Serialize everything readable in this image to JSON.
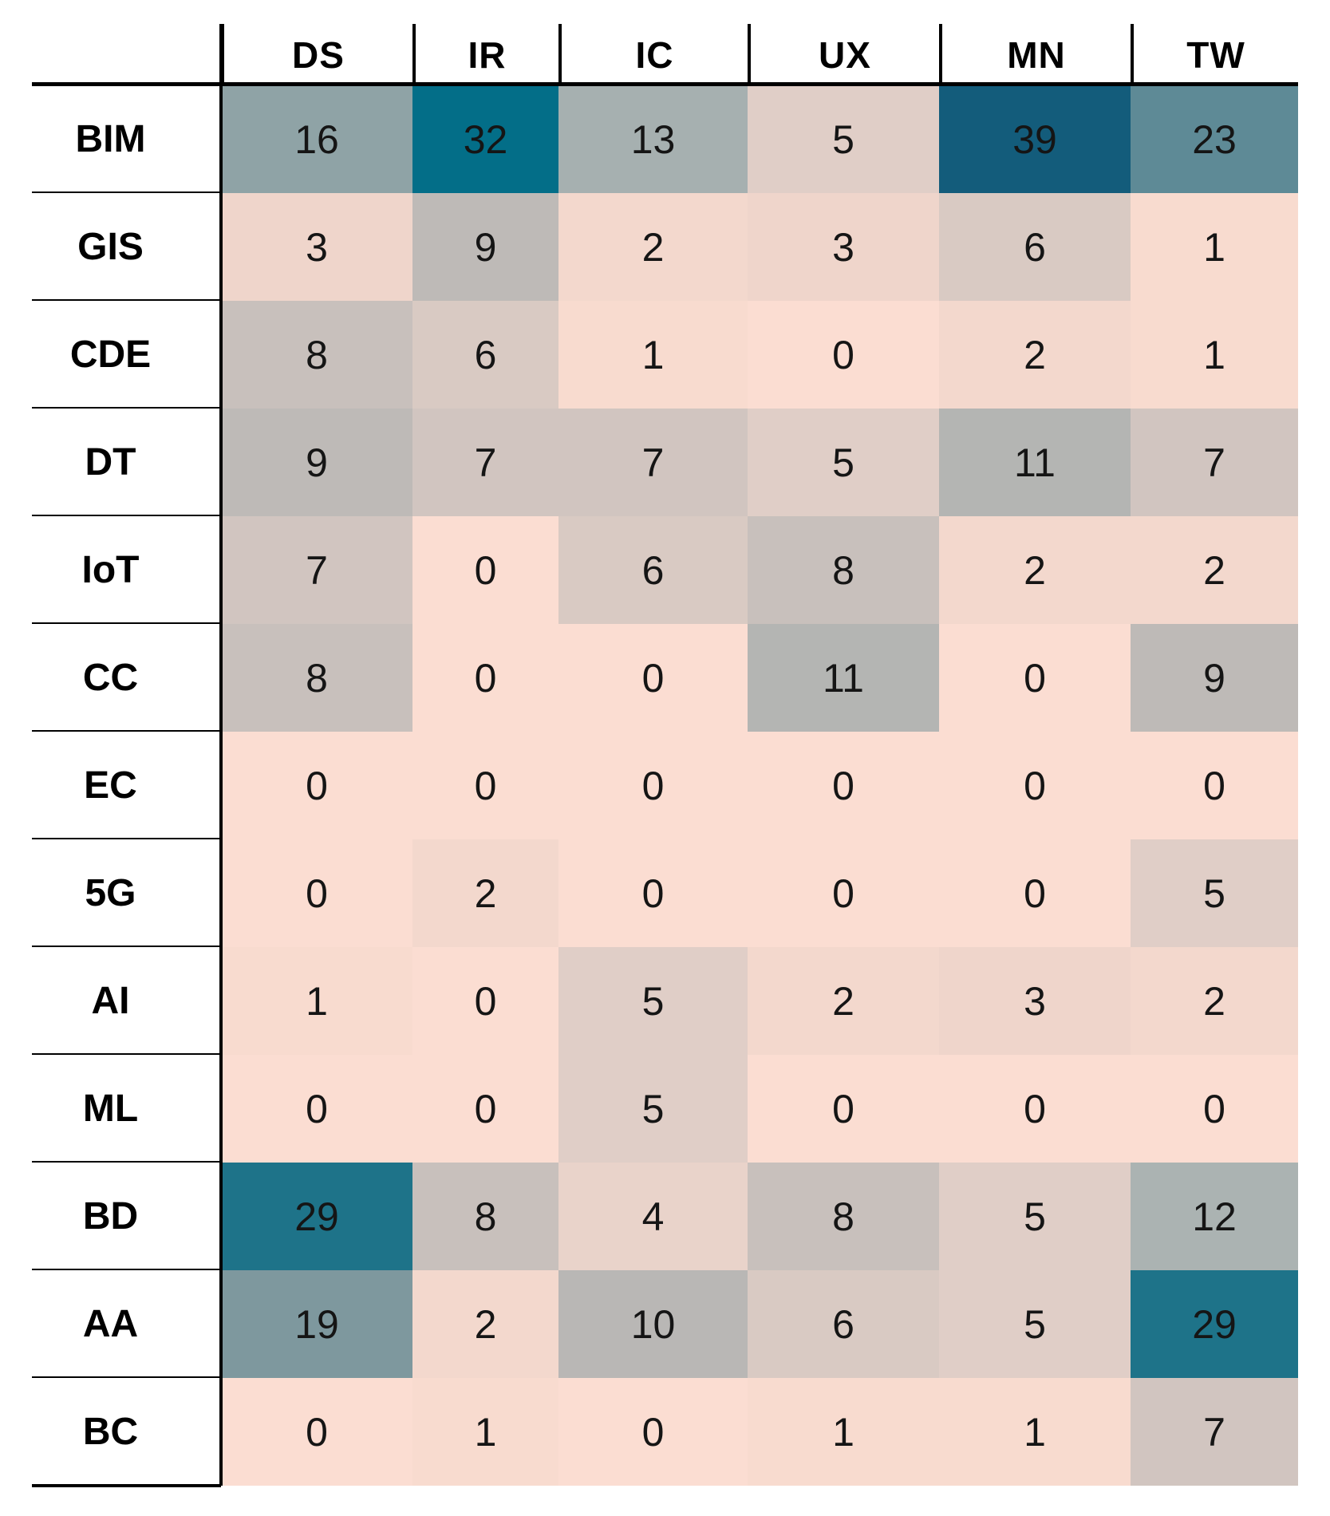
{
  "chart_data": {
    "type": "heatmap",
    "title": "",
    "x_labels": [
      "DS",
      "IR",
      "IC",
      "UX",
      "MN",
      "TW"
    ],
    "y_labels": [
      "BIM",
      "GIS",
      "CDE",
      "DT",
      "IoT",
      "CC",
      "EC",
      "5G",
      "AI",
      "ML",
      "BD",
      "AA",
      "BC"
    ],
    "values": [
      [
        16,
        32,
        13,
        5,
        39,
        23
      ],
      [
        3,
        9,
        2,
        3,
        6,
        1
      ],
      [
        8,
        6,
        1,
        0,
        2,
        1
      ],
      [
        9,
        7,
        7,
        5,
        11,
        7
      ],
      [
        7,
        0,
        6,
        8,
        2,
        2
      ],
      [
        8,
        0,
        0,
        11,
        0,
        9
      ],
      [
        0,
        0,
        0,
        0,
        0,
        0
      ],
      [
        0,
        2,
        0,
        0,
        0,
        5
      ],
      [
        1,
        0,
        5,
        2,
        3,
        2
      ],
      [
        0,
        0,
        5,
        0,
        0,
        0
      ],
      [
        29,
        8,
        4,
        8,
        5,
        12
      ],
      [
        19,
        2,
        10,
        6,
        5,
        29
      ],
      [
        0,
        1,
        0,
        1,
        1,
        7
      ]
    ],
    "value_min": 0,
    "value_max": 39,
    "legend": "none",
    "grid": "off",
    "colormap": {
      "0": "#FBDDD2",
      "1": "#F8DBCF",
      "2": "#F3D8CD",
      "3": "#EFD5CB",
      "4": "#E9D3CA",
      "5": "#E0CEC7",
      "6": "#D9CAC3",
      "7": "#D1C5C0",
      "8": "#C8C0BC",
      "9": "#BEBAB7",
      "10": "#B9B7B5",
      "11": "#B4B5B3",
      "12": "#ABB3B2",
      "13": "#A6B0B0",
      "16": "#8FA3A6",
      "19": "#7E989E",
      "23": "#5E8A96",
      "29": "#1E7389",
      "32": "#036E88",
      "39": "#135C7B"
    }
  },
  "colors": {
    "rule_line": "#000000",
    "number_text": "#151515",
    "label_text": "#000000",
    "background": "#FFFFFF"
  }
}
